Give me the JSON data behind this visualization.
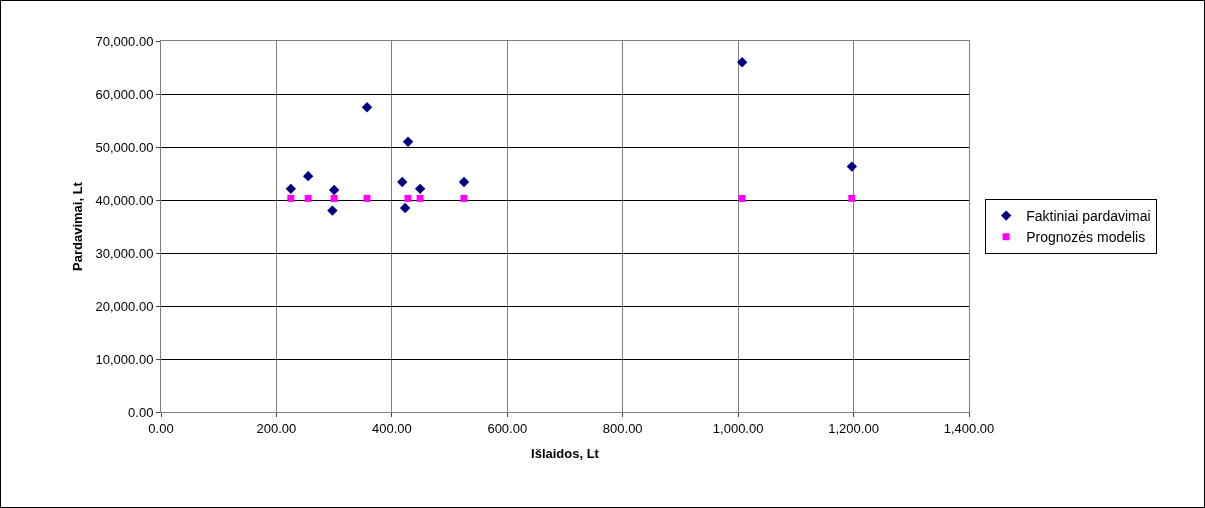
{
  "chart_data": {
    "type": "scatter",
    "xlabel": "Išlaidos, Lt",
    "ylabel": "Pardavimai, Lt",
    "xlim": [
      0,
      1400
    ],
    "xticks": [
      {
        "value": 0,
        "label": "0.00"
      },
      {
        "value": 200,
        "label": "200.00"
      },
      {
        "value": 400,
        "label": "400.00"
      },
      {
        "value": 600,
        "label": "600.00"
      },
      {
        "value": 800,
        "label": "800.00"
      },
      {
        "value": 1000,
        "label": "1,000.00"
      },
      {
        "value": 1200,
        "label": "1,200.00"
      },
      {
        "value": 1400,
        "label": "1,400.00"
      }
    ],
    "ylim": [
      0,
      70000
    ],
    "yticks": [
      {
        "value": 0,
        "label": "0.00"
      },
      {
        "value": 10000,
        "label": "10,000.00"
      },
      {
        "value": 20000,
        "label": "20,000.00"
      },
      {
        "value": 30000,
        "label": "30,000.00"
      },
      {
        "value": 40000,
        "label": "40,000.00"
      },
      {
        "value": 50000,
        "label": "50,000.00"
      },
      {
        "value": 60000,
        "label": "60,000.00"
      },
      {
        "value": 70000,
        "label": "70,000.00"
      }
    ],
    "grid": true,
    "legend": "right",
    "series": [
      {
        "name": "Faktiniai pardavimai",
        "color": "#000080",
        "marker": "diamond",
        "x": [
          225,
          255,
          300,
          297,
          357,
          418,
          423,
          428,
          449,
          525,
          1007,
          1197
        ],
        "values": [
          42100,
          44500,
          41900,
          38000,
          57500,
          43400,
          38500,
          51000,
          42100,
          43400,
          66000,
          46300
        ]
      },
      {
        "name": "Prognozės modelis",
        "color": "#ff00ff",
        "marker": "square",
        "x": [
          225,
          255,
          297,
          300,
          357,
          418,
          423,
          428,
          449,
          525,
          1007,
          1197
        ],
        "values": [
          40300,
          40300,
          null,
          40300,
          40300,
          null,
          null,
          40300,
          40300,
          40300,
          40300,
          40300
        ]
      }
    ]
  }
}
